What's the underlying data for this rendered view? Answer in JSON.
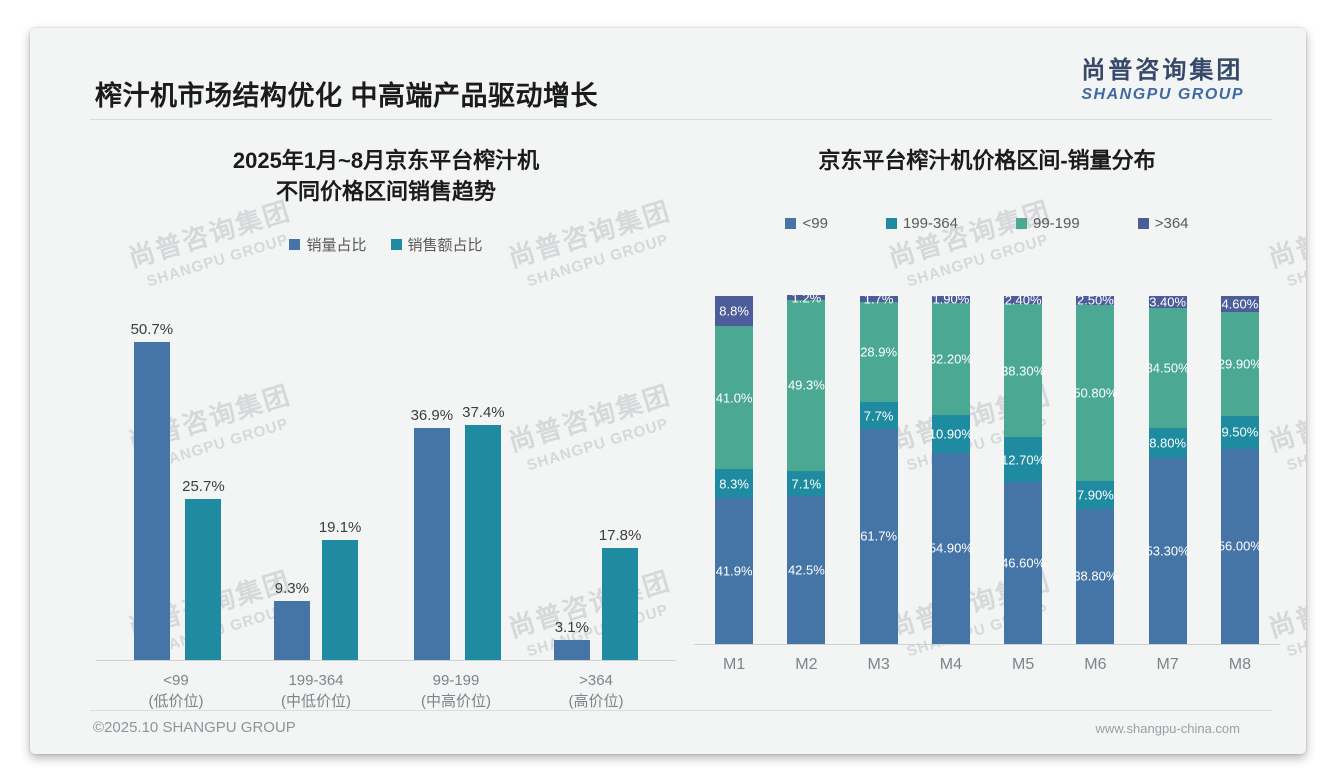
{
  "slide": {
    "title": "榨汁机市场结构优化 中高端产品驱动增长",
    "logo": {
      "cn": "尚普咨询集团",
      "en": "SHANGPU GROUP"
    },
    "watermark": {
      "cn": "尚普咨询集团",
      "en": "SHANGPU GROUP"
    },
    "footer": {
      "left": "©2025.10 SHANGPU GROUP",
      "right": "www.shangpu-china.com"
    }
  },
  "colors": {
    "blue": "#4575a7",
    "teal": "#1e8ba1",
    "green": "#4aa893",
    "darkblue": "#4c5d9a",
    "card_bg": "#f3f4f4",
    "axis": "#cdd2d6"
  },
  "chart_data": [
    {
      "type": "bar",
      "title": "2025年1月~8月京东平台榨汁机 不同价格区间销售趋势",
      "title_lines": [
        "2025年1月~8月京东平台榨汁机",
        "不同价格区间销售趋势"
      ],
      "legend_position": "top",
      "grid": false,
      "ylim": [
        0,
        55
      ],
      "legend": [
        {
          "label": "销量占比",
          "color": "#4575a7"
        },
        {
          "label": "销售额占比",
          "color": "#1e8ba1"
        }
      ],
      "categories": [
        "<99",
        "199-364",
        "99-199",
        ">364"
      ],
      "category_tiers": [
        "(低价位)",
        "(中低价位)",
        "(中高价位)",
        "(高价位)"
      ],
      "series": [
        {
          "name": "销量占比",
          "color": "#4575a7",
          "values": [
            50.7,
            9.3,
            36.9,
            3.1
          ],
          "labels": [
            "50.7%",
            "9.3%",
            "36.9%",
            "3.1%"
          ]
        },
        {
          "name": "销售额占比",
          "color": "#1e8ba1",
          "values": [
            25.7,
            19.1,
            37.4,
            17.8
          ],
          "labels": [
            "25.7%",
            "19.1%",
            "37.4%",
            "17.8%"
          ]
        }
      ]
    },
    {
      "type": "bar",
      "stacked": true,
      "title": "京东平台榨汁机价格区间-销量分布",
      "legend_position": "top",
      "grid": false,
      "ylim": [
        0,
        100
      ],
      "legend": [
        {
          "label": "<99",
          "color": "#4575a7"
        },
        {
          "label": "199-364",
          "color": "#1e8ba1"
        },
        {
          "label": "99-199",
          "color": "#4aa893"
        },
        {
          "label": ">364",
          "color": "#4c5d9a"
        }
      ],
      "categories": [
        "M1",
        "M2",
        "M3",
        "M4",
        "M5",
        "M6",
        "M7",
        "M8"
      ],
      "series": [
        {
          "name": "<99",
          "color": "#4575a7",
          "values": [
            41.9,
            42.5,
            61.7,
            54.9,
            46.6,
            38.8,
            53.3,
            56.0
          ],
          "labels": [
            "41.9%",
            "42.5%",
            "61.7%",
            "54.90%",
            "46.60%",
            "38.80%",
            "53.30%",
            "56.00%"
          ]
        },
        {
          "name": "199-364",
          "color": "#1e8ba1",
          "values": [
            8.3,
            7.1,
            7.7,
            10.9,
            12.7,
            7.9,
            8.8,
            9.5
          ],
          "labels": [
            "8.3%",
            "7.1%",
            "7.7%",
            "10.90%",
            "12.70%",
            "7.90%",
            "8.80%",
            "9.50%"
          ]
        },
        {
          "name": "99-199",
          "color": "#4aa893",
          "values": [
            41.0,
            49.3,
            28.9,
            32.2,
            38.3,
            50.8,
            34.5,
            29.9
          ],
          "labels": [
            "41.0%",
            "49.3%",
            "28.9%",
            "32.20%",
            "38.30%",
            "50.80%",
            "34.50%",
            "29.90%"
          ]
        },
        {
          "name": ">364",
          "color": "#4c5d9a",
          "values": [
            8.8,
            1.2,
            1.7,
            1.9,
            2.4,
            2.5,
            3.4,
            4.6
          ],
          "labels": [
            "8.8%",
            "1.2%",
            "1.7%",
            "1.90%",
            "2.40%",
            "2.50%",
            "3.40%",
            "4.60%"
          ]
        }
      ]
    }
  ]
}
